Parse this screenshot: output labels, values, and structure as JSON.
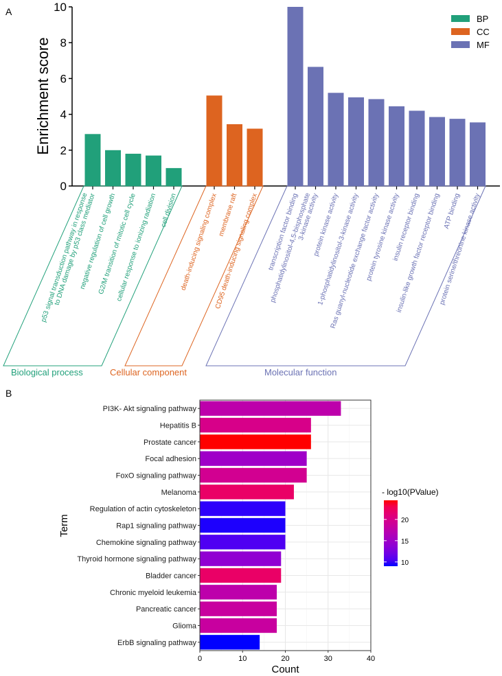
{
  "chart_data": [
    {
      "panel": "A",
      "type": "bar",
      "ylabel": "Enrichment score",
      "ylim": [
        0,
        10
      ],
      "yticks": [
        0,
        2,
        4,
        6,
        8,
        10
      ],
      "legend": {
        "placement": "top-right",
        "entries": [
          {
            "name": "BP",
            "color": "#21a07a"
          },
          {
            "name": "CC",
            "color": "#dd6420"
          },
          {
            "name": "MF",
            "color": "#6b72b4"
          }
        ]
      },
      "groups": [
        {
          "key": "BP",
          "name": "Biological process",
          "color": "#21a07a",
          "categories": [
            "p53 signal transduction pathway in response to DNA damage by p53 class mediator",
            "negative regulation of cell growth",
            "G2/M transition of mitotic cell cycle",
            "cellular response to ionizing radiation",
            "cell division"
          ],
          "values": [
            2.9,
            2.0,
            1.8,
            1.7,
            1.0
          ]
        },
        {
          "key": "CC",
          "name": "Cellular component",
          "color": "#dd6420",
          "categories": [
            "death-inducing signaling complex",
            "membrane raft",
            "CD95 death-inducing signaling complex"
          ],
          "values": [
            5.05,
            3.45,
            3.2
          ]
        },
        {
          "key": "MF",
          "name": "Molecular function",
          "color": "#6b72b4",
          "categories": [
            "transcription factor binding",
            "phosphatidylinositol-4,5-bisphosphate 3-kinase activity",
            "protein kinase activity",
            "1-phosphatidylinositol-3-kinase activity",
            "Ras guanyl-nucleotide exchange factor activity",
            "protein tyrosine kinase activity",
            "insulin receptor binding",
            "insulin-like growth factor receptor binding",
            "ATP binding",
            "protein serine/threonine kinase activity"
          ],
          "values": [
            10.0,
            6.65,
            5.2,
            4.95,
            4.85,
            4.45,
            4.2,
            3.85,
            3.75,
            3.55
          ]
        }
      ]
    },
    {
      "panel": "B",
      "type": "bar",
      "orientation": "horizontal",
      "xlabel": "Count",
      "ylabel": "Term",
      "xlim": [
        0,
        40
      ],
      "xticks": [
        0,
        10,
        20,
        30,
        40
      ],
      "grid": true,
      "categories": [
        "PI3K- Akt signaling pathway",
        "Hepatitis B",
        "Prostate cancer",
        "Focal adhesion",
        "FoxO signaling pathway",
        "Melanoma",
        "Regulation of actin cytoskeleton",
        "Rap1 signaling pathway",
        "Chemokine signaling pathway",
        "Thyroid hormone signaling pathway",
        "Bladder cancer",
        "Chronic myeloid leukemia",
        "Pancreatic cancer",
        "Glioma",
        "ErbB signaling pathway"
      ],
      "values": [
        33,
        26,
        26,
        25,
        25,
        22,
        20,
        20,
        20,
        19,
        19,
        18,
        18,
        18,
        14
      ],
      "color_values": [
        17.5,
        20,
        24.5,
        15,
        19.5,
        22,
        9.5,
        9.2,
        10.5,
        14,
        22,
        17.5,
        18.5,
        18.5,
        9.0
      ],
      "colorbar": {
        "title": "- log10(PValue)",
        "range": [
          9,
          24.5
        ],
        "ticks": [
          10,
          15,
          20
        ],
        "low_color": "#0000ff",
        "high_color": "#ff0000",
        "placement": "right"
      }
    }
  ],
  "panel_labels": [
    "A",
    "B"
  ]
}
